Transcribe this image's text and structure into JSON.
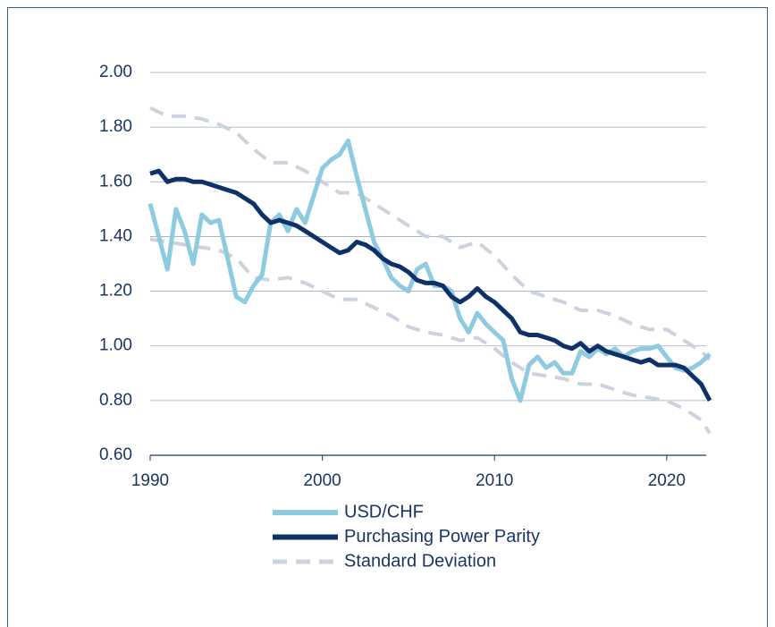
{
  "chart_data": {
    "type": "line",
    "xlim": [
      1990,
      2022.5
    ],
    "xticks": [
      1990,
      2000,
      2010,
      2020
    ],
    "ylim": [
      0.6,
      2.0
    ],
    "yticks": [
      {
        "value": 0.6,
        "label": "0.60"
      },
      {
        "value": 0.8,
        "label": "0.80"
      },
      {
        "value": 1.0,
        "label": "1.00"
      },
      {
        "value": 1.2,
        "label": "1.20"
      },
      {
        "value": 1.4,
        "label": "1.40"
      },
      {
        "value": 1.6,
        "label": "1.60"
      },
      {
        "value": 1.8,
        "label": "1.80"
      },
      {
        "value": 2.0,
        "label": "2.00"
      }
    ],
    "grid": true,
    "legend": "bottom",
    "x": [
      1990,
      1990.5,
      1991,
      1991.5,
      1992,
      1992.5,
      1993,
      1993.5,
      1994,
      1994.5,
      1995,
      1995.5,
      1996,
      1996.5,
      1997,
      1997.5,
      1998,
      1998.5,
      1999,
      1999.5,
      2000,
      2000.5,
      2001,
      2001.5,
      2002,
      2002.5,
      2003,
      2003.5,
      2004,
      2004.5,
      2005,
      2005.5,
      2006,
      2006.5,
      2007,
      2007.5,
      2008,
      2008.5,
      2009,
      2009.5,
      2010,
      2010.5,
      2011,
      2011.5,
      2012,
      2012.5,
      2013,
      2013.5,
      2014,
      2014.5,
      2015,
      2015.5,
      2016,
      2016.5,
      2017,
      2017.5,
      2018,
      2018.5,
      2019,
      2019.5,
      2020,
      2020.5,
      2021,
      2021.5,
      2022,
      2022.5
    ],
    "series": [
      {
        "name": "USD/CHF",
        "color": "#8ecbe0",
        "width": 5,
        "dashed": false,
        "values": [
          1.52,
          1.4,
          1.28,
          1.5,
          1.42,
          1.3,
          1.48,
          1.45,
          1.46,
          1.32,
          1.18,
          1.16,
          1.22,
          1.26,
          1.45,
          1.48,
          1.42,
          1.5,
          1.45,
          1.55,
          1.65,
          1.68,
          1.7,
          1.75,
          1.62,
          1.5,
          1.38,
          1.32,
          1.25,
          1.22,
          1.2,
          1.28,
          1.3,
          1.22,
          1.22,
          1.2,
          1.1,
          1.05,
          1.12,
          1.08,
          1.05,
          1.02,
          0.88,
          0.8,
          0.93,
          0.96,
          0.92,
          0.94,
          0.9,
          0.9,
          0.98,
          0.96,
          0.99,
          0.97,
          0.99,
          0.96,
          0.98,
          0.99,
          0.99,
          1.0,
          0.96,
          0.92,
          0.91,
          0.92,
          0.94,
          0.97
        ]
      },
      {
        "name": "Purchasing Power Parity",
        "color": "#0e3268",
        "width": 5,
        "dashed": false,
        "values": [
          1.63,
          1.64,
          1.6,
          1.61,
          1.61,
          1.6,
          1.6,
          1.59,
          1.58,
          1.57,
          1.56,
          1.54,
          1.52,
          1.48,
          1.45,
          1.46,
          1.45,
          1.44,
          1.42,
          1.4,
          1.38,
          1.36,
          1.34,
          1.35,
          1.38,
          1.37,
          1.35,
          1.32,
          1.3,
          1.29,
          1.27,
          1.24,
          1.23,
          1.23,
          1.22,
          1.18,
          1.16,
          1.18,
          1.21,
          1.18,
          1.16,
          1.13,
          1.1,
          1.05,
          1.04,
          1.04,
          1.03,
          1.02,
          1.0,
          0.99,
          1.01,
          0.98,
          1.0,
          0.98,
          0.97,
          0.96,
          0.95,
          0.94,
          0.95,
          0.93,
          0.93,
          0.93,
          0.92,
          0.89,
          0.86,
          0.8
        ]
      },
      {
        "name": "Standard Deviation",
        "color": "#ccd3de",
        "width": 4,
        "dashed": true,
        "x": [
          1990,
          1991,
          1992,
          1993,
          1994,
          1995,
          1996,
          1997,
          1998,
          1999,
          2000,
          2001,
          2002,
          2003,
          2004,
          2005,
          2006,
          2007,
          2008,
          2009,
          2010,
          2011,
          2012,
          2013,
          2014,
          2015,
          2016,
          2017,
          2018,
          2019,
          2020,
          2021,
          2022,
          2022.5
        ],
        "upper": [
          1.87,
          1.84,
          1.84,
          1.83,
          1.81,
          1.78,
          1.72,
          1.67,
          1.67,
          1.64,
          1.6,
          1.56,
          1.56,
          1.52,
          1.48,
          1.44,
          1.4,
          1.4,
          1.36,
          1.38,
          1.33,
          1.26,
          1.2,
          1.18,
          1.16,
          1.13,
          1.13,
          1.11,
          1.08,
          1.06,
          1.06,
          1.02,
          0.98,
          0.95
        ],
        "lower": [
          1.39,
          1.38,
          1.37,
          1.36,
          1.35,
          1.32,
          1.25,
          1.24,
          1.25,
          1.23,
          1.2,
          1.17,
          1.17,
          1.14,
          1.11,
          1.07,
          1.05,
          1.04,
          1.02,
          1.03,
          0.99,
          0.94,
          0.9,
          0.89,
          0.88,
          0.86,
          0.86,
          0.84,
          0.82,
          0.81,
          0.8,
          0.77,
          0.73,
          0.68
        ]
      }
    ]
  }
}
